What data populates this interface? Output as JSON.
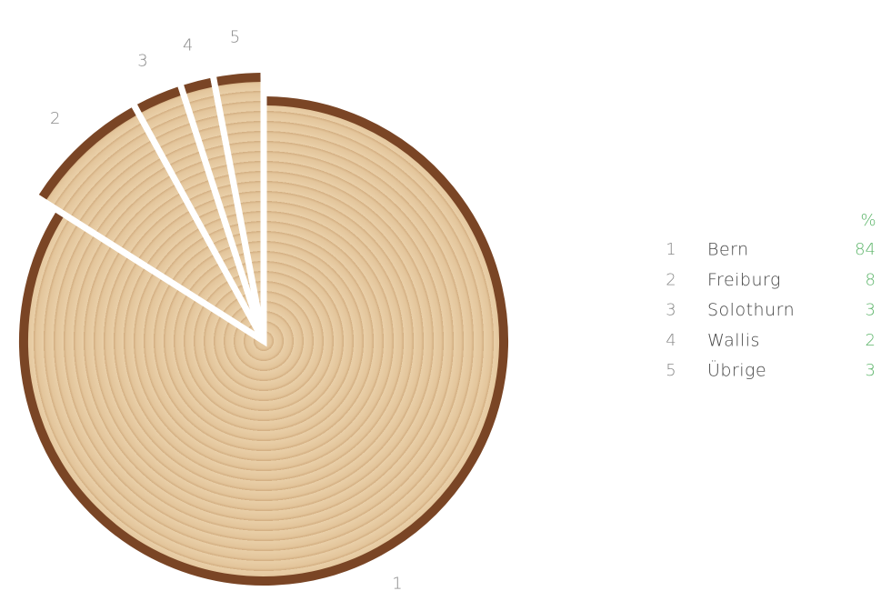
{
  "chart_data": {
    "type": "pie",
    "slice_labels": [
      "1",
      "2",
      "3",
      "4",
      "5"
    ],
    "categories": [
      "Bern",
      "Freiburg",
      "Solothurn",
      "Wallis",
      "Übrige"
    ],
    "values": [
      84,
      8,
      3,
      2,
      3
    ],
    "legend_header": "%",
    "color": "#e6c9a0"
  }
}
